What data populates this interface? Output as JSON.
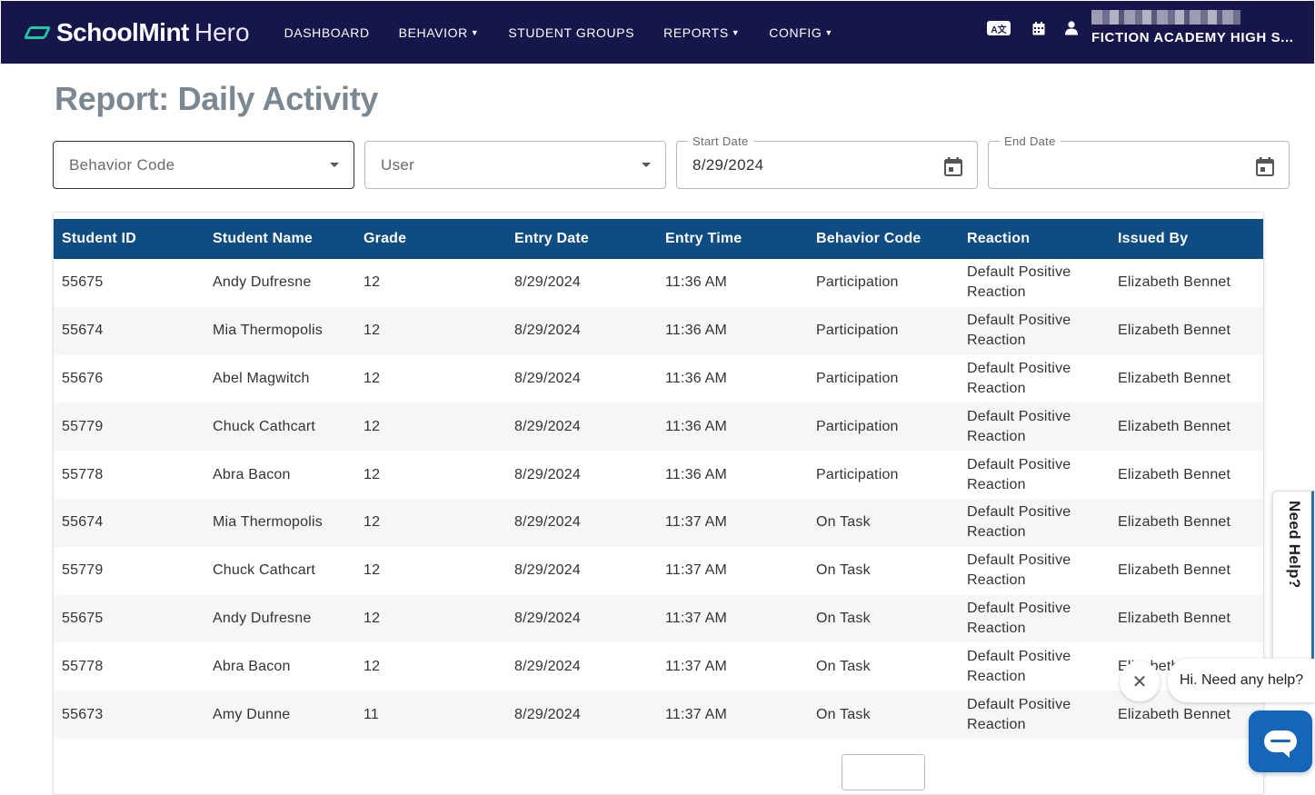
{
  "brand": {
    "name": "SchoolMint",
    "product": "Hero"
  },
  "nav": [
    {
      "label": "DASHBOARD",
      "has_menu": false
    },
    {
      "label": "BEHAVIOR",
      "has_menu": true
    },
    {
      "label": "STUDENT GROUPS",
      "has_menu": false
    },
    {
      "label": "REPORTS",
      "has_menu": true
    },
    {
      "label": "CONFIG",
      "has_menu": true
    }
  ],
  "header": {
    "translate_icon_text": "A文",
    "school_name": "FICTION ACADEMY HIGH S..."
  },
  "page": {
    "title": "Report: Daily Activity"
  },
  "filters": {
    "behavior_code": {
      "placeholder": "Behavior Code"
    },
    "user": {
      "placeholder": "User"
    },
    "start_date": {
      "label": "Start Date",
      "value": "8/29/2024"
    },
    "end_date": {
      "label": "End Date",
      "value": ""
    }
  },
  "table": {
    "columns": [
      "Student ID",
      "Student Name",
      "Grade",
      "Entry Date",
      "Entry Time",
      "Behavior Code",
      "Reaction",
      "Issued By"
    ],
    "rows": [
      [
        "55675",
        "Andy Dufresne",
        "12",
        "8/29/2024",
        "11:36 AM",
        "Participation",
        "Default Positive Reaction",
        "Elizabeth Bennet"
      ],
      [
        "55674",
        "Mia Thermopolis",
        "12",
        "8/29/2024",
        "11:36 AM",
        "Participation",
        "Default Positive Reaction",
        "Elizabeth Bennet"
      ],
      [
        "55676",
        "Abel Magwitch",
        "12",
        "8/29/2024",
        "11:36 AM",
        "Participation",
        "Default Positive Reaction",
        "Elizabeth Bennet"
      ],
      [
        "55779",
        "Chuck Cathcart",
        "12",
        "8/29/2024",
        "11:36 AM",
        "Participation",
        "Default Positive Reaction",
        "Elizabeth Bennet"
      ],
      [
        "55778",
        "Abra Bacon",
        "12",
        "8/29/2024",
        "11:36 AM",
        "Participation",
        "Default Positive Reaction",
        "Elizabeth Bennet"
      ],
      [
        "55674",
        "Mia Thermopolis",
        "12",
        "8/29/2024",
        "11:37 AM",
        "On Task",
        "Default Positive Reaction",
        "Elizabeth Bennet"
      ],
      [
        "55779",
        "Chuck Cathcart",
        "12",
        "8/29/2024",
        "11:37 AM",
        "On Task",
        "Default Positive Reaction",
        "Elizabeth Bennet"
      ],
      [
        "55675",
        "Andy Dufresne",
        "12",
        "8/29/2024",
        "11:37 AM",
        "On Task",
        "Default Positive Reaction",
        "Elizabeth Bennet"
      ],
      [
        "55778",
        "Abra Bacon",
        "12",
        "8/29/2024",
        "11:37 AM",
        "On Task",
        "Default Positive Reaction",
        "Elizabeth Bennet"
      ],
      [
        "55673",
        "Amy Dunne",
        "11",
        "8/29/2024",
        "11:37 AM",
        "On Task",
        "Default Positive Reaction",
        "Elizabeth Bennet"
      ]
    ]
  },
  "help": {
    "tab_label": "Need Help?",
    "chat_greeting": "Hi. Need any help?"
  },
  "colors": {
    "topbar": "#16164b",
    "brand_accent": "#1ec9a4",
    "table_header": "#0f4c81",
    "title": "#7b8892",
    "chat_button": "#1565b8"
  },
  "icons": {
    "logo": "schoolmint-logo-icon",
    "translate": "translate-icon",
    "calendar": "calendar-icon",
    "user": "user-icon",
    "dropdown": "chevron-down-icon",
    "close": "close-icon",
    "chat": "chat-icon"
  }
}
